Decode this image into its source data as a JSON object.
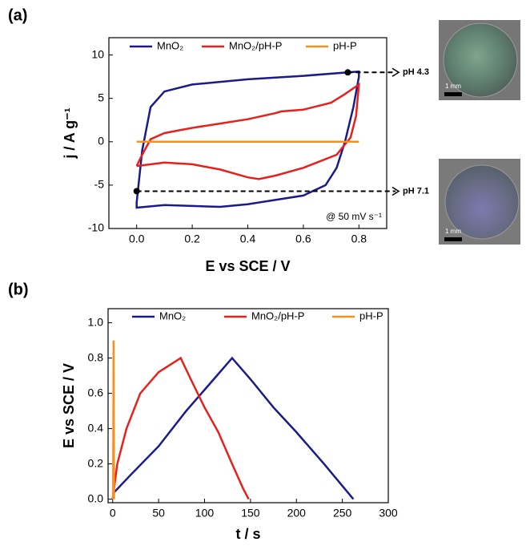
{
  "chart_data": [
    {
      "type": "line",
      "panel": "(a)",
      "x_label": "E vs SCE / V",
      "y_label": "j / A g⁻¹",
      "note": "@ 50 mV s⁻¹",
      "xlim": [
        -0.1,
        0.9
      ],
      "ylim": [
        -10,
        12
      ],
      "xticks": [
        {
          "value": 0,
          "label": "0.0"
        },
        {
          "value": 0.2,
          "label": "0.2"
        },
        {
          "value": 0.4,
          "label": "0.4"
        },
        {
          "value": 0.6,
          "label": "0.6"
        },
        {
          "value": 0.8,
          "label": "0.8"
        }
      ],
      "yticks": [
        -10,
        -5,
        0,
        5,
        10
      ],
      "series": [
        {
          "name": "MnO₂",
          "color": "#1a1a8c",
          "x": [
            0.0,
            0.02,
            0.05,
            0.1,
            0.2,
            0.4,
            0.6,
            0.76,
            0.8,
            0.8,
            0.78,
            0.75,
            0.72,
            0.68,
            0.6,
            0.4,
            0.3,
            0.2,
            0.1,
            0.0,
            0.0
          ],
          "values": [
            -7.0,
            -1.0,
            4.0,
            5.8,
            6.6,
            7.2,
            7.6,
            8.0,
            8.1,
            7.5,
            4.0,
            0.0,
            -3.0,
            -5.0,
            -6.2,
            -7.2,
            -7.5,
            -7.4,
            -7.3,
            -7.6,
            -7.0
          ]
        },
        {
          "name": "MnO₂/pH-P",
          "color": "#e8201c",
          "x": [
            0.0,
            0.02,
            0.05,
            0.1,
            0.2,
            0.3,
            0.4,
            0.5,
            0.52,
            0.6,
            0.7,
            0.75,
            0.8,
            0.79,
            0.77,
            0.72,
            0.6,
            0.5,
            0.44,
            0.4,
            0.3,
            0.2,
            0.1,
            0.0
          ],
          "values": [
            -2.8,
            -1.5,
            0.3,
            1.0,
            1.6,
            2.1,
            2.6,
            3.3,
            3.5,
            3.7,
            4.5,
            5.5,
            6.6,
            3.0,
            0.5,
            -1.5,
            -3.0,
            -3.9,
            -4.3,
            -4.1,
            -3.2,
            -2.6,
            -2.4,
            -2.8
          ]
        },
        {
          "name": "pH-P",
          "color": "#f7901e",
          "x": [
            0.0,
            0.8
          ],
          "values": [
            0.0,
            0.0
          ]
        }
      ],
      "annotations": [
        {
          "text": "pH 4.3",
          "x": 0.76,
          "y": 8.0
        },
        {
          "text": "pH 7.1",
          "x": 0.0,
          "y": -5.7
        }
      ]
    },
    {
      "type": "line",
      "panel": "(b)",
      "x_label": "t / s",
      "y_label": "E vs SCE / V",
      "xlim": [
        -5,
        300
      ],
      "ylim": [
        -0.02,
        1.08
      ],
      "xticks": [
        0,
        50,
        100,
        150,
        200,
        250,
        300
      ],
      "yticks": [
        {
          "value": 0,
          "label": "0.0"
        },
        {
          "value": 0.2,
          "label": "0.2"
        },
        {
          "value": 0.4,
          "label": "0.4"
        },
        {
          "value": 0.6,
          "label": "0.6"
        },
        {
          "value": 0.8,
          "label": "0.8"
        },
        {
          "value": 1.0,
          "label": "1.0"
        }
      ],
      "series": [
        {
          "name": "MnO₂",
          "color": "#1a1a8c",
          "x": [
            0,
            20,
            50,
            80,
            110,
            130,
            150,
            175,
            200,
            230,
            262
          ],
          "values": [
            0.03,
            0.14,
            0.3,
            0.5,
            0.68,
            0.8,
            0.68,
            0.52,
            0.38,
            0.2,
            0.0
          ]
        },
        {
          "name": "MnO₂/pH-P",
          "color": "#e8201c",
          "x": [
            0,
            5,
            15,
            30,
            50,
            74,
            85,
            100,
            115,
            130,
            142,
            148
          ],
          "values": [
            0.0,
            0.2,
            0.4,
            0.6,
            0.72,
            0.8,
            0.68,
            0.52,
            0.38,
            0.2,
            0.06,
            0.0
          ]
        },
        {
          "name": "pH-P",
          "color": "#f7901e",
          "x": [
            0.5,
            1,
            1.5
          ],
          "values": [
            0.0,
            0.9,
            0.0
          ]
        }
      ]
    }
  ],
  "insets": [
    {
      "scale_bar": "1 mm"
    },
    {
      "scale_bar": "1 mm"
    }
  ]
}
